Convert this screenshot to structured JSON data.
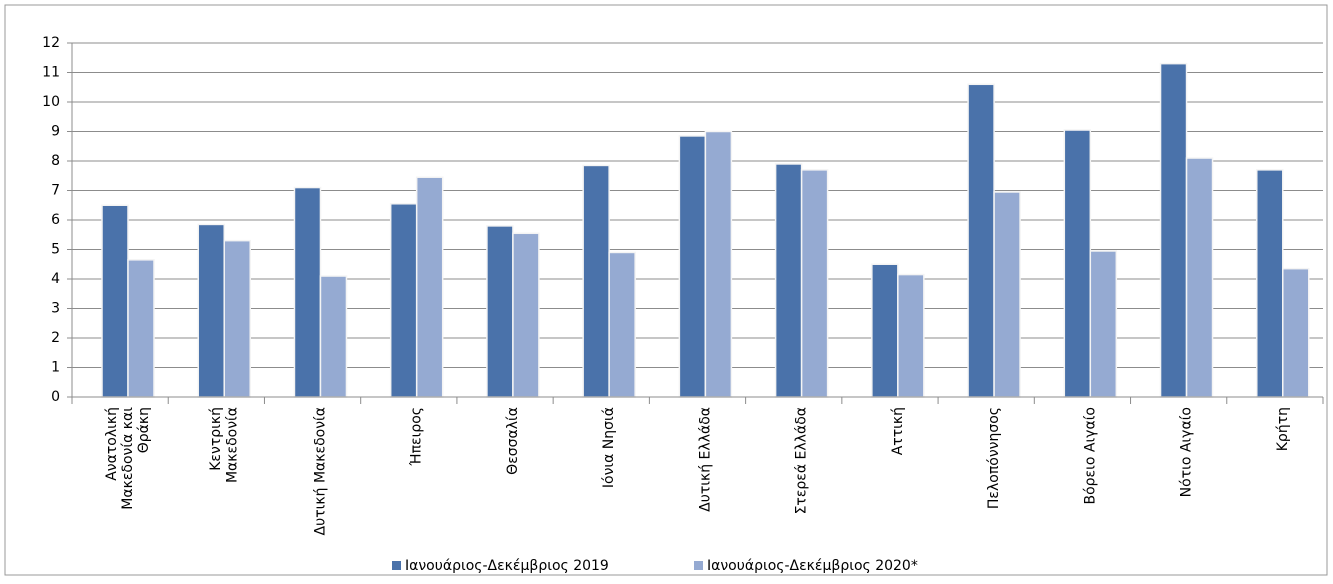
{
  "chart_data": {
    "type": "bar",
    "categories": [
      "Ανατολική\nΜακεδονία και\nΘράκη",
      "Κεντρική\nΜακεδονία",
      "Δυτική Μακεδονία",
      "Ήπειρος",
      "Θεσσαλία",
      "Ιόνια Νησιά",
      "Δυτική Ελλάδα",
      "Στερεά Ελλάδα",
      "Αττική",
      "Πελοπόννησος",
      "Βόρειο Αιγαίο",
      "Νότιο Αιγαίο",
      "Κρήτη"
    ],
    "series": [
      {
        "name": "Ιανουάριος-Δεκέμβριος 2019",
        "color": "#4a72aa",
        "values": [
          6.5,
          5.85,
          7.1,
          6.55,
          5.8,
          7.85,
          8.85,
          7.9,
          4.5,
          10.6,
          9.05,
          11.3,
          7.7
        ]
      },
      {
        "name": "Ιανουάριος-Δεκέμβριος 2020*",
        "color": "#95aad2",
        "values": [
          4.65,
          5.3,
          4.1,
          7.45,
          5.55,
          4.9,
          9.0,
          7.7,
          4.15,
          6.95,
          4.95,
          8.1,
          4.35
        ]
      }
    ],
    "ylim": [
      0,
      12
    ],
    "yticks": [
      0,
      1,
      2,
      3,
      4,
      5,
      6,
      7,
      8,
      9,
      10,
      11,
      12
    ],
    "grid": true,
    "legend": "bottom"
  }
}
